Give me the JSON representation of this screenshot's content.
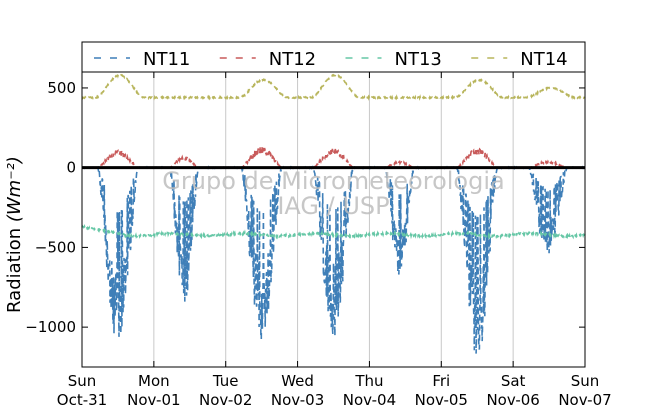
{
  "chart_data": {
    "type": "line",
    "ylabel": "Radiation",
    "ylabel_unit": "(Wm⁻²)",
    "ylim": [
      -1250,
      600
    ],
    "yticks": [
      500,
      0,
      -500,
      -1000
    ],
    "ytick_labels": [
      "500",
      "0",
      "−500",
      "−1000"
    ],
    "xlim": [
      0,
      7
    ],
    "x_unit": "days since Oct-31 00:00",
    "xticks": [
      0,
      1,
      2,
      3,
      4,
      5,
      6,
      7
    ],
    "xtick_labels": [
      [
        "Sun",
        "Oct-31"
      ],
      [
        "Mon",
        "Nov-01"
      ],
      [
        "Tue",
        "Nov-02"
      ],
      [
        "Wed",
        "Nov-03"
      ],
      [
        "Thu",
        "Nov-04"
      ],
      [
        "Fri",
        "Nov-05"
      ],
      [
        "Sat",
        "Nov-06"
      ],
      [
        "Sun",
        "Nov-07"
      ]
    ],
    "grid": "vertical",
    "legend_position": "top",
    "watermark": [
      "Grupo de Micrometeorologia",
      "IAG / USP"
    ],
    "series": [
      {
        "name": "NT11",
        "color": "#3f7fb8",
        "days": [
          {
            "start": 0.22,
            "end": 0.78,
            "min": -1120
          },
          {
            "start": 1.22,
            "end": 1.62,
            "min": -860
          },
          {
            "start": 2.22,
            "end": 2.78,
            "min": -1100
          },
          {
            "start": 3.22,
            "end": 3.78,
            "min": -1070
          },
          {
            "start": 4.22,
            "end": 4.62,
            "min": -680
          },
          {
            "start": 5.22,
            "end": 5.78,
            "min": -1210
          },
          {
            "start": 6.22,
            "end": 6.75,
            "min": -560
          }
        ]
      },
      {
        "name": "NT12",
        "color": "#c85a5a",
        "days": [
          {
            "start": 0.22,
            "end": 0.78,
            "max": 110
          },
          {
            "start": 1.22,
            "end": 1.62,
            "max": 70
          },
          {
            "start": 2.22,
            "end": 2.78,
            "max": 130
          },
          {
            "start": 3.22,
            "end": 3.78,
            "max": 120
          },
          {
            "start": 4.22,
            "end": 4.62,
            "max": 40
          },
          {
            "start": 5.22,
            "end": 5.78,
            "max": 120
          },
          {
            "start": 6.22,
            "end": 6.75,
            "max": 40
          }
        ]
      },
      {
        "name": "NT13",
        "color": "#66c7a6",
        "baseline": -420,
        "start_value": -370
      },
      {
        "name": "NT14",
        "color": "#b8b55c",
        "baseline": 440,
        "day_peaks": [
          580,
          440,
          550,
          580,
          440,
          550,
          500
        ]
      }
    ],
    "zero_line": {
      "value": 0,
      "color": "#000000"
    }
  }
}
